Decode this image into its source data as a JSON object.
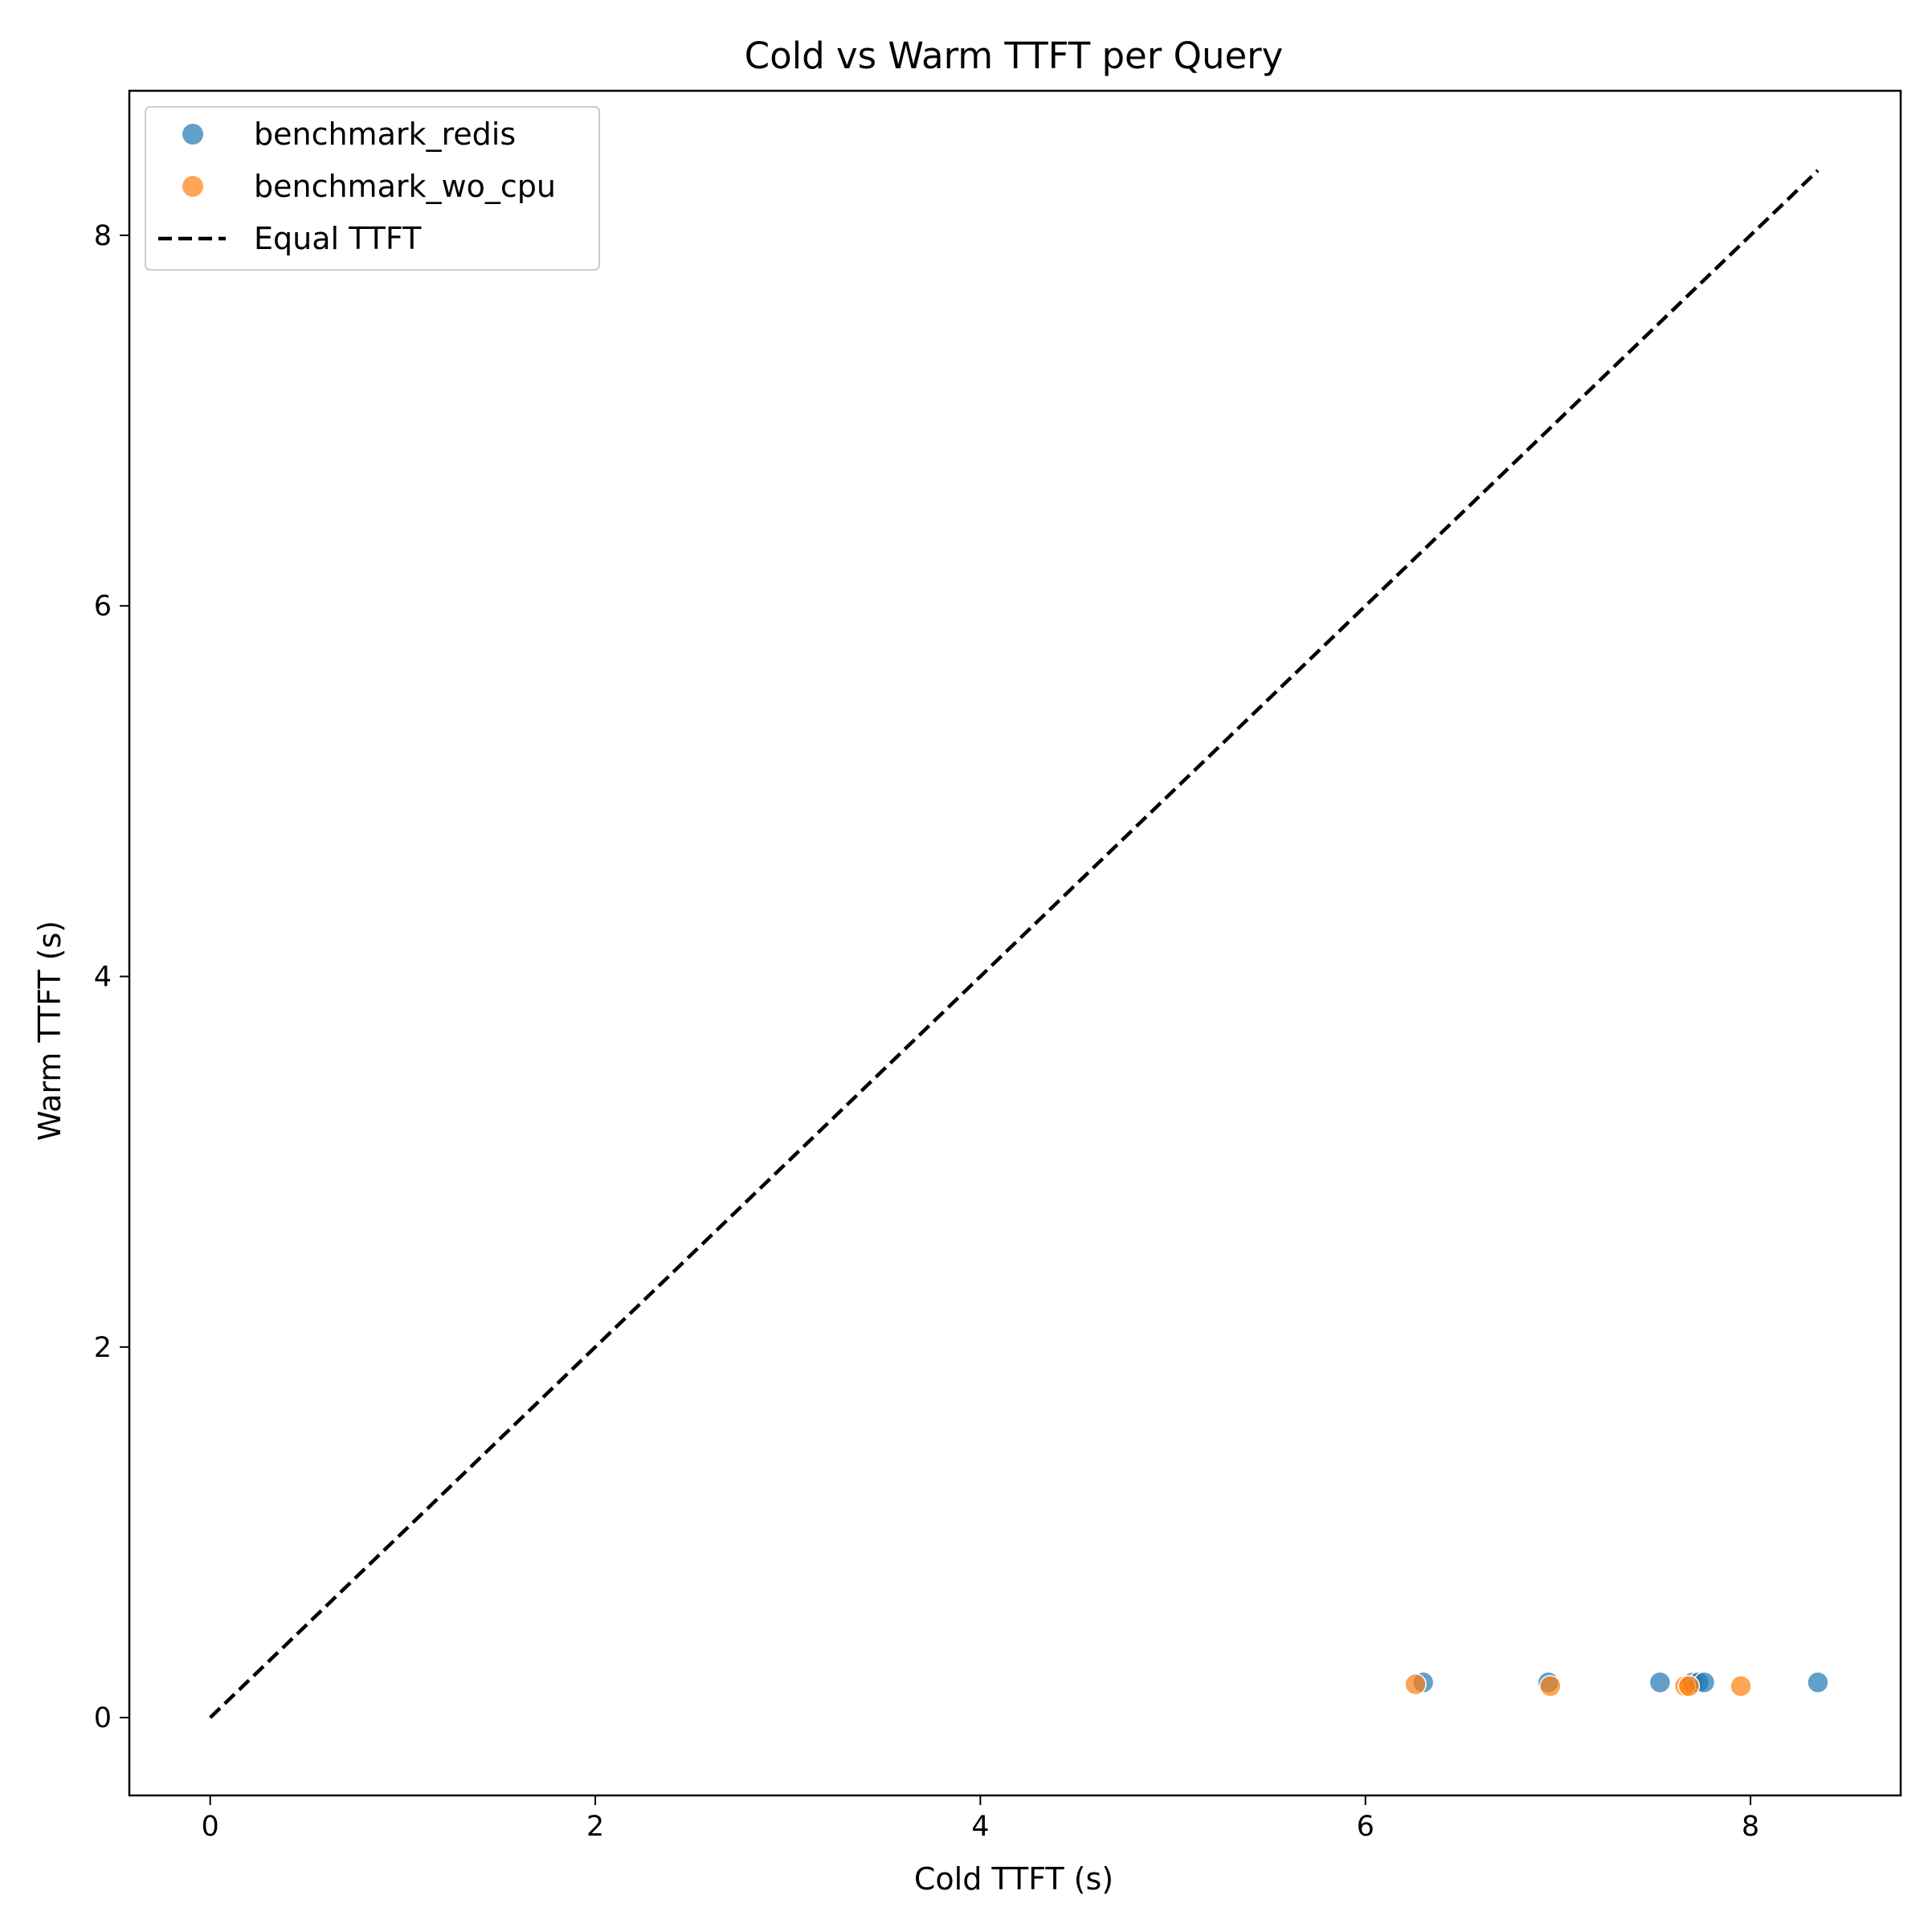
{
  "chart_data": {
    "type": "scatter",
    "title": "Cold vs Warm TTFT per Query",
    "xlabel": "Cold TTFT (s)",
    "ylabel": "Warm TTFT (s)",
    "xlim": [
      -0.42,
      8.78
    ],
    "ylim": [
      -0.42,
      8.78
    ],
    "xticks": [
      0,
      2,
      4,
      6,
      8
    ],
    "yticks": [
      0,
      2,
      4,
      6,
      8
    ],
    "grid": false,
    "legend_position": "upper-left",
    "series": [
      {
        "name": "benchmark_redis",
        "color": "#1f77b4",
        "opacity": 0.7,
        "points": [
          {
            "x": 6.3,
            "y": 0.19
          },
          {
            "x": 6.95,
            "y": 0.19
          },
          {
            "x": 7.53,
            "y": 0.19
          },
          {
            "x": 7.7,
            "y": 0.19
          },
          {
            "x": 7.73,
            "y": 0.19
          },
          {
            "x": 7.76,
            "y": 0.19
          },
          {
            "x": 8.35,
            "y": 0.19
          }
        ]
      },
      {
        "name": "benchmark_wo_cpu",
        "color": "#ff7f0e",
        "opacity": 0.7,
        "points": [
          {
            "x": 6.26,
            "y": 0.18
          },
          {
            "x": 6.96,
            "y": 0.17
          },
          {
            "x": 7.66,
            "y": 0.17
          },
          {
            "x": 7.68,
            "y": 0.17
          },
          {
            "x": 7.95,
            "y": 0.17
          }
        ]
      }
    ],
    "reference_line": {
      "name": "Equal TTFT",
      "style": "dashed",
      "color": "#000000",
      "from": [
        0,
        0
      ],
      "to": [
        8.35,
        8.35
      ]
    }
  }
}
